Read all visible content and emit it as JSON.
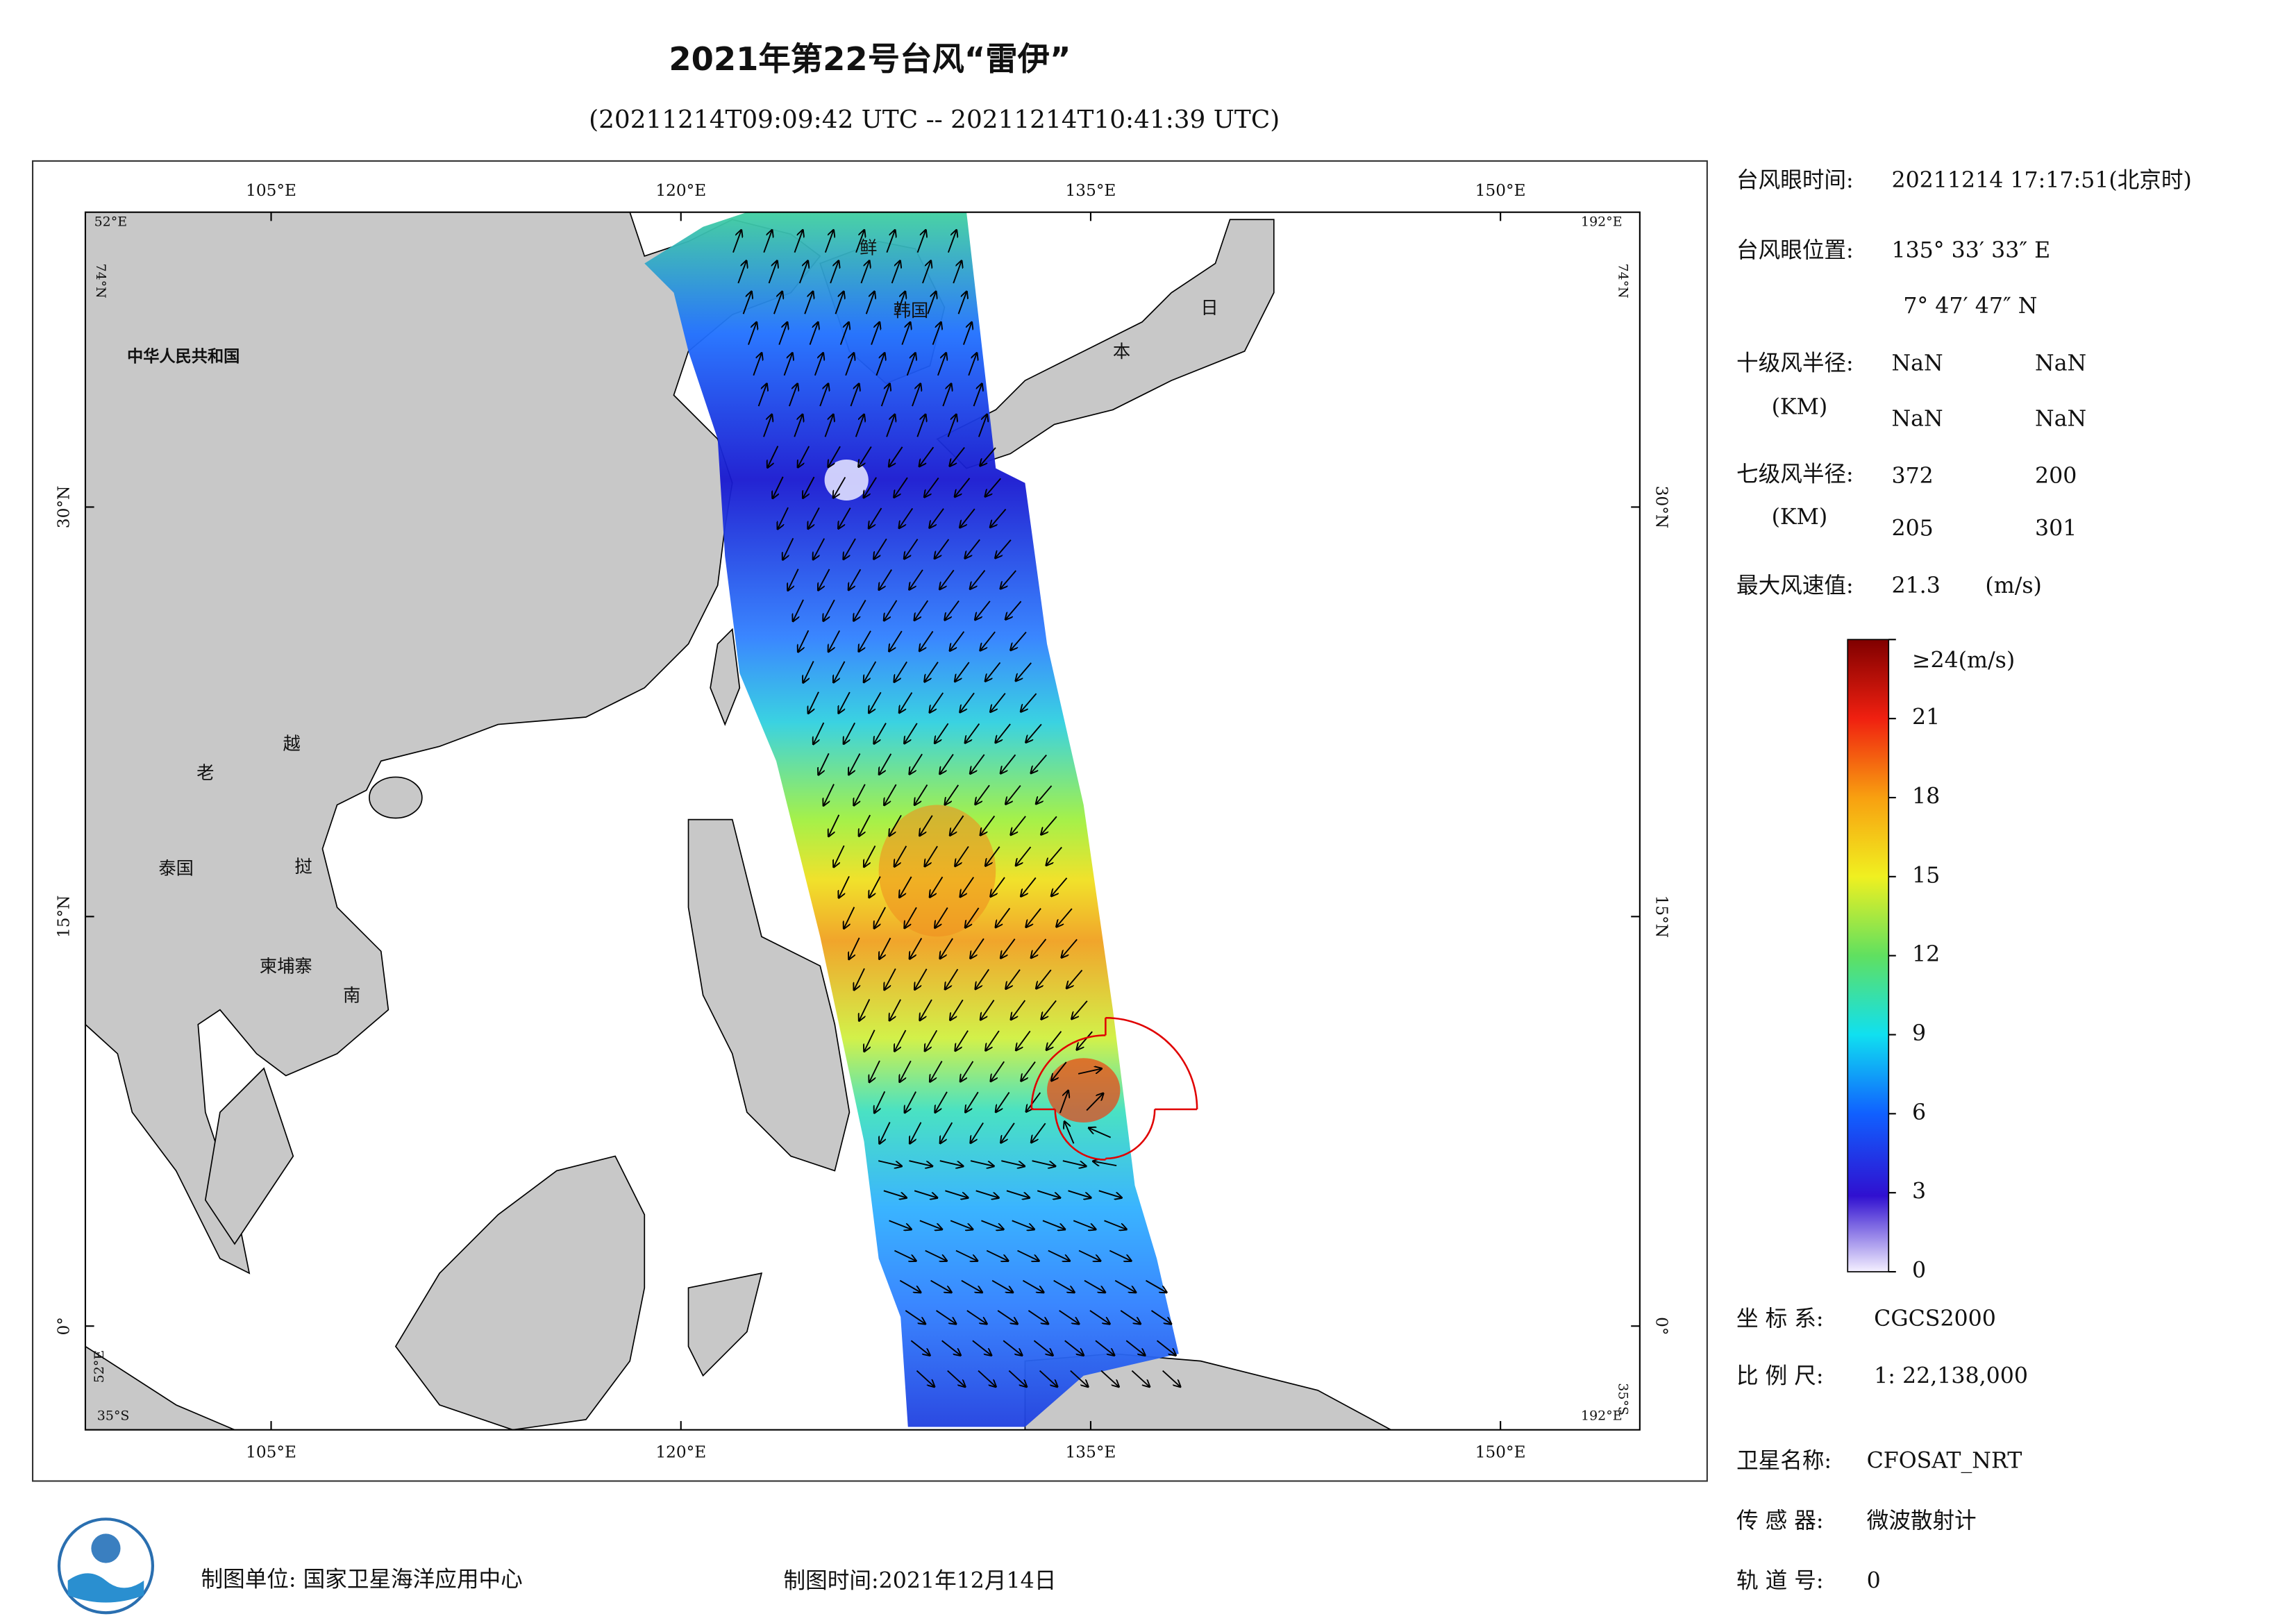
{
  "header": {
    "title": "2021年第22号台风“雷伊”",
    "subtitle": "(20211214T09:09:42 UTC -- 20211214T10:41:39 UTC)"
  },
  "map": {
    "xlim": [
      98.2,
      155.1
    ],
    "ylim": [
      -3.8,
      40.8
    ],
    "xticks": [
      {
        "value": 105,
        "label": "105°E"
      },
      {
        "value": 120,
        "label": "120°E"
      },
      {
        "value": 135,
        "label": "135°E"
      },
      {
        "value": 150,
        "label": "150°E"
      }
    ],
    "yticks": [
      {
        "value": 0,
        "label": "0°"
      },
      {
        "value": 15,
        "label": "15°N"
      },
      {
        "value": 30,
        "label": "30°N"
      }
    ],
    "corner_labels": [
      "52°E",
      "192°E",
      "74°N",
      "74°N",
      "52°E",
      "35°S",
      "35°S",
      "192°E"
    ],
    "places": [
      "中华人民共和国",
      "鲜",
      "韩国",
      "日",
      "本",
      "老",
      "越",
      "泰国",
      "挝",
      "柬埔寨",
      "南"
    ]
  },
  "panel": {
    "eye_time_label": "台风眼时间:",
    "eye_time": "20211214 17:17:51(北京时)",
    "eye_pos_label": "台风眼位置:",
    "eye_lon": "135° 33′ 33″ E",
    "eye_lat": "7° 47′ 47″ N",
    "r10": {
      "label": "十级风半径:",
      "unit": "(KM)",
      "values": [
        "NaN",
        "NaN",
        "NaN",
        "NaN"
      ]
    },
    "r7": {
      "label": "七级风半径:",
      "unit": "(KM)",
      "values": [
        372,
        200,
        205,
        301
      ]
    },
    "max_wind": {
      "label": "最大风速值:",
      "value": 21.3,
      "unit": "(m/s)"
    },
    "crs_label": "坐 标 系:",
    "crs": "CGCS2000",
    "scale_label": "比 例 尺:",
    "scale": "1: 22,138,000",
    "sat_label": "卫星名称:",
    "sat": "CFOSAT_NRT",
    "sensor_label": "传 感 器:",
    "sensor": "微波散射计",
    "orbit_label": "轨 道 号:",
    "orbit": 0
  },
  "colorbar": {
    "lim": [
      0,
      24
    ],
    "ticks": [
      0,
      3,
      6,
      9,
      12,
      15,
      18,
      21,
      {
        "value": 24,
        "label": "≥24(m/s)"
      }
    ]
  },
  "footer": {
    "unit": "制图单位: 国家卫星海洋应用中心",
    "date": "制图时间:2021年12月14日"
  }
}
